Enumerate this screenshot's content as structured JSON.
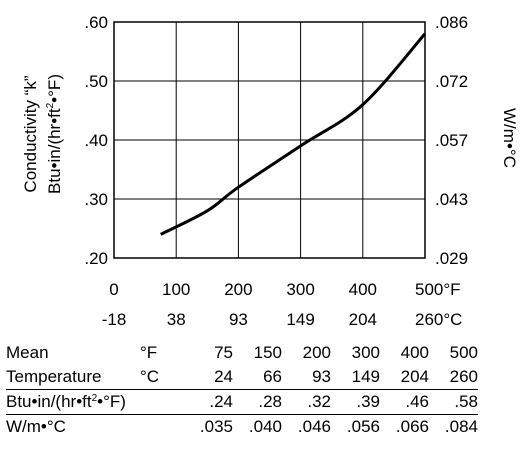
{
  "chart_data": {
    "type": "line",
    "x_f": [
      75,
      150,
      200,
      300,
      400,
      500
    ],
    "x_c": [
      24,
      66,
      93,
      149,
      204,
      260
    ],
    "values_btu": [
      0.24,
      0.28,
      0.32,
      0.39,
      0.46,
      0.58
    ],
    "values_si": [
      0.035,
      0.04,
      0.046,
      0.056,
      0.066,
      0.084
    ],
    "xlim": [
      0,
      500
    ],
    "ylim": [
      0.2,
      0.6
    ],
    "y2lim": [
      0.029,
      0.086
    ],
    "grid": true,
    "y_ticks_left": [
      ".60",
      ".50",
      ".40",
      ".30",
      ".20"
    ],
    "y_ticks_right": [
      ".086",
      ".072",
      ".057",
      ".043",
      ".029"
    ],
    "x_ticks_f": [
      "0",
      "100",
      "200",
      "300",
      "400",
      "500°F"
    ],
    "x_ticks_c": [
      "-18",
      "38",
      "93",
      "149",
      "204",
      "260°C"
    ],
    "ylabel_line1": "Conductivity “k”",
    "ylabel_line2_pre": "Btu•in/(hr•ft",
    "ylabel_line2_sup": "2",
    "ylabel_line2_post": "•°F)",
    "y2label": "W/m•°C"
  },
  "table": {
    "row1": {
      "label": "Mean",
      "unit": "°F",
      "values": [
        "75",
        "150",
        "200",
        "300",
        "400",
        "500"
      ]
    },
    "row2": {
      "label": "Temperature",
      "unit": "°C",
      "values": [
        "24",
        "66",
        "93",
        "149",
        "204",
        "260"
      ]
    },
    "row3": {
      "label_pre": "Btu•in/(hr•ft",
      "label_sup": "2",
      "label_post": "•°F)",
      "values": [
        ".24",
        ".28",
        ".32",
        ".39",
        ".46",
        ".58"
      ]
    },
    "row4": {
      "label": "W/m•°C",
      "values": [
        ".035",
        ".040",
        ".046",
        ".056",
        ".066",
        ".084"
      ]
    }
  }
}
